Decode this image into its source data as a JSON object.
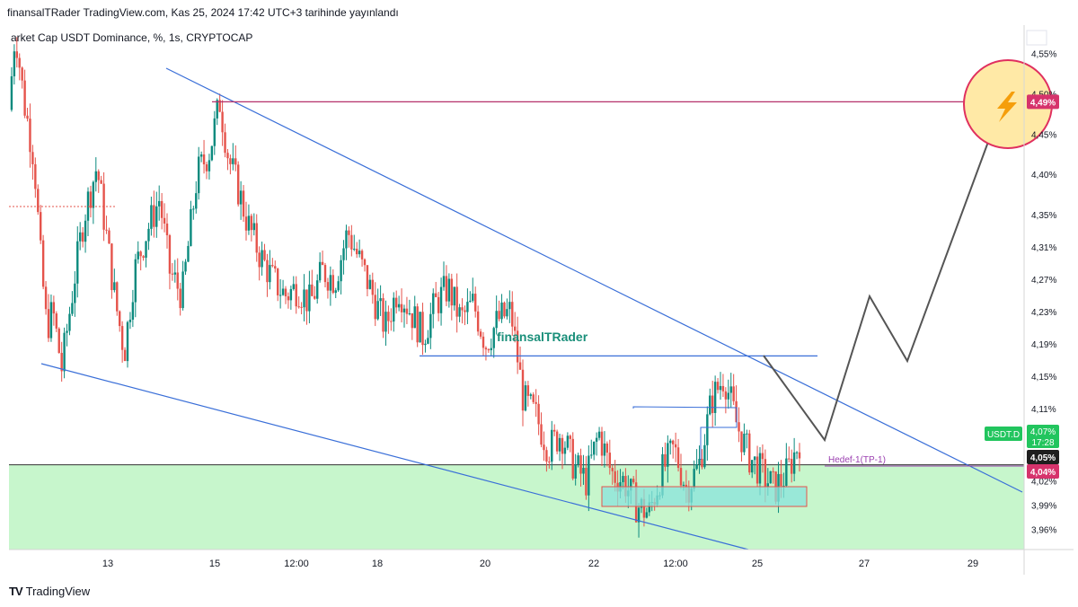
{
  "header": {
    "publish_line": "finansalTRader TradingView.com, Kas 25, 2024 17:42 UTC+3 tarihinde yayınlandı",
    "symbol_title": "arket Cap USDT Dominance, %, 1s, CRYPTOCAP",
    "scale_unit": "%"
  },
  "footer": {
    "brand_logo": "TV",
    "brand_name": "TradingView"
  },
  "colors": {
    "trendline": "#3a6fd8",
    "resistance_magenta": "#b5306a",
    "support_zone_fill": "#c7f6cc",
    "target_circle_fill": "#ffe9a6",
    "target_circle_stroke": "#e0305f",
    "bull_candle": "#0b8a7e",
    "bear_candle": "#e5534b",
    "projection_path": "#555555",
    "watermark": "#1a8f7a",
    "last_price_badge": "#22c55e",
    "target_badge": "#d6336c",
    "support_badge": "#d6336c"
  },
  "chart_data": {
    "type": "candlestick",
    "title": "arket Cap USDT Dominance, %, 1s, CRYPTOCAP",
    "y_unit": "%",
    "ylim": [
      3.935,
      4.585
    ],
    "y_ticks": [
      "4,55%",
      "4,50%",
      "4,45%",
      "4,40%",
      "4,35%",
      "4,31%",
      "4,27%",
      "4,23%",
      "4,19%",
      "4,15%",
      "4,11%",
      "4,07%",
      "4,02%",
      "3,99%",
      "3,96%"
    ],
    "x_ticks": [
      "13",
      "15",
      "12:00",
      "18",
      "20",
      "22",
      "12:00",
      "25",
      "27",
      "29"
    ],
    "price_path": [
      [
        0.0,
        4.48
      ],
      [
        0.5,
        4.58
      ],
      [
        1.2,
        4.49
      ],
      [
        2.0,
        4.42
      ],
      [
        2.5,
        4.3
      ],
      [
        3.0,
        4.21
      ],
      [
        3.5,
        4.23
      ],
      [
        4.2,
        4.16
      ],
      [
        5.2,
        4.27
      ],
      [
        6.0,
        4.35
      ],
      [
        7.0,
        4.41
      ],
      [
        7.8,
        4.32
      ],
      [
        8.5,
        4.24
      ],
      [
        9.2,
        4.18
      ],
      [
        10.0,
        4.28
      ],
      [
        11.0,
        4.33
      ],
      [
        12.0,
        4.37
      ],
      [
        12.8,
        4.28
      ],
      [
        13.8,
        4.25
      ],
      [
        15.0,
        4.4
      ],
      [
        16.0,
        4.43
      ],
      [
        16.8,
        4.49
      ],
      [
        17.5,
        4.42
      ],
      [
        18.3,
        4.38
      ],
      [
        19.0,
        4.34
      ],
      [
        20.0,
        4.3
      ],
      [
        21.0,
        4.27
      ],
      [
        22.0,
        4.25
      ],
      [
        23.0,
        4.26
      ],
      [
        24.0,
        4.24
      ],
      [
        25.0,
        4.28
      ],
      [
        26.0,
        4.27
      ],
      [
        27.0,
        4.33
      ],
      [
        28.0,
        4.29
      ],
      [
        29.0,
        4.25
      ],
      [
        30.0,
        4.21
      ],
      [
        31.0,
        4.26
      ],
      [
        32.0,
        4.23
      ],
      [
        33.0,
        4.2
      ],
      [
        34.0,
        4.24
      ],
      [
        35.0,
        4.26
      ],
      [
        36.0,
        4.22
      ],
      [
        37.0,
        4.24
      ],
      [
        38.0,
        4.19
      ],
      [
        39.0,
        4.22
      ],
      [
        40.0,
        4.23
      ],
      [
        41.0,
        4.12
      ],
      [
        42.0,
        4.1
      ],
      [
        43.0,
        4.06
      ],
      [
        44.0,
        4.08
      ],
      [
        45.0,
        4.04
      ],
      [
        46.0,
        4.02
      ],
      [
        47.0,
        4.08
      ],
      [
        48.0,
        4.03
      ],
      [
        49.0,
        4.02
      ],
      [
        50.0,
        3.99
      ],
      [
        51.0,
        3.98
      ],
      [
        52.0,
        4.03
      ],
      [
        53.0,
        4.06
      ],
      [
        54.0,
        4.01
      ],
      [
        55.0,
        4.04
      ],
      [
        56.0,
        4.12
      ],
      [
        57.0,
        4.15
      ],
      [
        58.0,
        4.09
      ],
      [
        59.0,
        4.05
      ],
      [
        60.0,
        4.03
      ],
      [
        61.0,
        4.01
      ],
      [
        62.0,
        4.03
      ],
      [
        63.0,
        4.07
      ]
    ],
    "price_labels": {
      "target": "4,49%",
      "last_symbol": "USDT.D",
      "last_price": "4,07%",
      "countdown": "17:28",
      "level_a": "4,05%",
      "level_b": "4,04%"
    },
    "target_level": 4.49,
    "support_level": 4.04,
    "neckline_level": 4.175,
    "annotations": {
      "tp_label": "Hedef-1(TP-1)",
      "watermark": "finansalTRader",
      "target_icon": "lightning-icon"
    },
    "grid": false,
    "legend": "none"
  }
}
